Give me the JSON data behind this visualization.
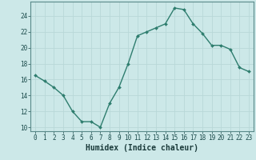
{
  "x": [
    0,
    1,
    2,
    3,
    4,
    5,
    6,
    7,
    8,
    9,
    10,
    11,
    12,
    13,
    14,
    15,
    16,
    17,
    18,
    19,
    20,
    21,
    22,
    23
  ],
  "y": [
    16.5,
    15.8,
    15.0,
    14.0,
    12.0,
    10.7,
    10.7,
    10.0,
    13.0,
    15.0,
    18.0,
    21.5,
    22.0,
    22.5,
    23.0,
    25.0,
    24.8,
    23.0,
    21.8,
    20.3,
    20.3,
    19.8,
    17.5,
    17.0
  ],
  "line_color": "#2e7d6e",
  "marker_color": "#2e7d6e",
  "bg_color": "#cce8e8",
  "grid_color": "#b8d8d8",
  "xlabel": "Humidex (Indice chaleur)",
  "xlabel_fontsize": 7,
  "xlim": [
    -0.5,
    23.5
  ],
  "ylim": [
    9.5,
    25.8
  ],
  "yticks": [
    10,
    12,
    14,
    16,
    18,
    20,
    22,
    24
  ],
  "xticks": [
    0,
    1,
    2,
    3,
    4,
    5,
    6,
    7,
    8,
    9,
    10,
    11,
    12,
    13,
    14,
    15,
    16,
    17,
    18,
    19,
    20,
    21,
    22,
    23
  ],
  "tick_fontsize": 5.5
}
